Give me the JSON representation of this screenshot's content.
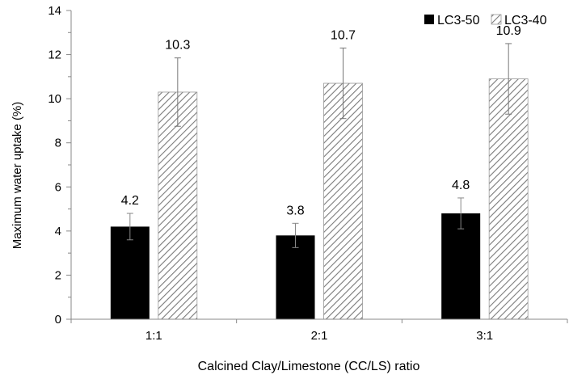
{
  "chart_data": {
    "type": "bar",
    "title": "",
    "xlabel": "Calcined Clay/Limestone (CC/LS) ratio",
    "ylabel": "Maximum water uptake (%)",
    "ylim": [
      0,
      14
    ],
    "yticks": [
      0,
      2,
      4,
      6,
      8,
      10,
      12,
      14
    ],
    "categories": [
      "1:1",
      "2:1",
      "3:1"
    ],
    "series": [
      {
        "name": "LC3-50",
        "values": [
          4.2,
          3.8,
          4.8
        ],
        "errors": [
          0.6,
          0.55,
          0.7
        ],
        "labels": [
          "4.2",
          "3.8",
          "4.8"
        ],
        "fill": "solid",
        "color": "#000000"
      },
      {
        "name": "LC3-40",
        "values": [
          10.3,
          10.7,
          10.9
        ],
        "errors": [
          1.55,
          1.6,
          1.6
        ],
        "labels": [
          "10.3",
          "10.7",
          "10.9"
        ],
        "fill": "hatched",
        "color": "#808080"
      }
    ],
    "legend_position": "top-right",
    "grid": false
  }
}
